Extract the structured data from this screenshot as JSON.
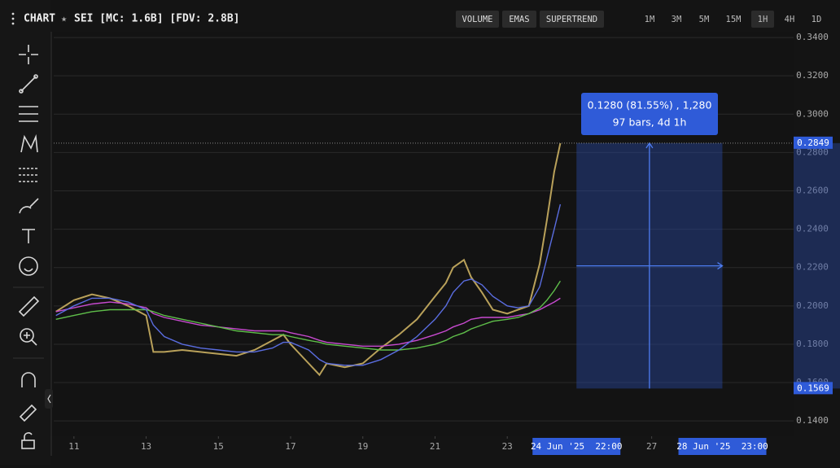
{
  "header": {
    "title": "CHART",
    "symbol": "SEI [MC: 1.6B] [FDV: 2.8B]"
  },
  "indicator_buttons": [
    "VOLUME",
    "EMAS",
    "SUPERTREND"
  ],
  "timeframes": [
    "1M",
    "3M",
    "5M",
    "15M",
    "1H",
    "4H",
    "1D"
  ],
  "active_timeframe": "1H",
  "chart_data": {
    "type": "line",
    "grid": true,
    "xlim": [
      10.44,
      30.93
    ],
    "ylim": [
      0.132,
      0.343
    ],
    "xticks": [
      11,
      13,
      15,
      17,
      19,
      21,
      23,
      27
    ],
    "yticks": [
      {
        "value": 0.34,
        "label": "0.3400"
      },
      {
        "value": 0.32,
        "label": "0.3200"
      },
      {
        "value": 0.3,
        "label": "0.3000"
      },
      {
        "value": 0.28,
        "label": "0.2800"
      },
      {
        "value": 0.26,
        "label": "0.2600"
      },
      {
        "value": 0.24,
        "label": "0.2400"
      },
      {
        "value": 0.22,
        "label": "0.2200"
      },
      {
        "value": 0.2,
        "label": "0.2000"
      },
      {
        "value": 0.18,
        "label": "0.1800"
      },
      {
        "value": 0.16,
        "label": "0.1600"
      },
      {
        "value": 0.14,
        "label": "0.1400"
      }
    ],
    "x": [
      10.5,
      11,
      11.5,
      12,
      12.5,
      13,
      13.2,
      13.5,
      14,
      14.5,
      15,
      15.5,
      16,
      16.5,
      16.8,
      17,
      17.5,
      17.8,
      18,
      18.5,
      19,
      19.5,
      20,
      20.5,
      21,
      21.3,
      21.5,
      21.8,
      22,
      22.3,
      22.6,
      23,
      23.3,
      23.6,
      23.9,
      24.1,
      24.3,
      24.47
    ],
    "series": [
      {
        "color": "#b9a15a",
        "values": [
          0.197,
          0.203,
          0.206,
          0.204,
          0.2,
          0.195,
          0.176,
          0.176,
          0.177,
          0.176,
          0.175,
          0.174,
          0.177,
          0.182,
          0.185,
          0.18,
          0.17,
          0.164,
          0.17,
          0.168,
          0.17,
          0.178,
          0.185,
          0.193,
          0.205,
          0.212,
          0.22,
          0.224,
          0.215,
          0.207,
          0.198,
          0.196,
          0.198,
          0.2,
          0.222,
          0.245,
          0.27,
          0.2849
        ]
      },
      {
        "color": "#c84ad0",
        "values": [
          0.197,
          0.199,
          0.201,
          0.202,
          0.201,
          0.199,
          0.196,
          0.194,
          0.192,
          0.19,
          0.189,
          0.188,
          0.187,
          0.187,
          0.187,
          0.186,
          0.184,
          0.182,
          0.181,
          0.18,
          0.179,
          0.179,
          0.18,
          0.182,
          0.185,
          0.187,
          0.189,
          0.191,
          0.193,
          0.194,
          0.194,
          0.194,
          0.195,
          0.196,
          0.198,
          0.2,
          0.202,
          0.204
        ]
      },
      {
        "color": "#5fbf4a",
        "values": [
          0.193,
          0.195,
          0.197,
          0.198,
          0.198,
          0.198,
          0.197,
          0.195,
          0.193,
          0.191,
          0.189,
          0.187,
          0.186,
          0.185,
          0.185,
          0.184,
          0.182,
          0.181,
          0.18,
          0.179,
          0.178,
          0.177,
          0.177,
          0.178,
          0.18,
          0.182,
          0.184,
          0.186,
          0.188,
          0.19,
          0.192,
          0.193,
          0.194,
          0.196,
          0.199,
          0.203,
          0.208,
          0.213
        ]
      },
      {
        "color": "#5a6de0",
        "values": [
          0.195,
          0.2,
          0.204,
          0.204,
          0.202,
          0.198,
          0.19,
          0.184,
          0.18,
          0.178,
          0.177,
          0.176,
          0.176,
          0.178,
          0.181,
          0.181,
          0.177,
          0.172,
          0.17,
          0.169,
          0.169,
          0.172,
          0.177,
          0.184,
          0.193,
          0.2,
          0.207,
          0.213,
          0.214,
          0.211,
          0.205,
          0.2,
          0.199,
          0.2,
          0.21,
          0.225,
          0.24,
          0.253
        ]
      }
    ],
    "price_label": {
      "value": 0.2849,
      "label": "0.2849"
    },
    "range_low_label": {
      "value": 0.1569,
      "label": "0.1569"
    },
    "range_x_labels": [
      {
        "value": 24.917,
        "label": "24 Jun '25  22:00"
      },
      {
        "value": 28.958,
        "label": "28 Jun '25  23:00"
      }
    ],
    "measure_text": [
      "0.1280 (81.55%) , 1,280",
      "97 bars, 4d 1h"
    ]
  }
}
